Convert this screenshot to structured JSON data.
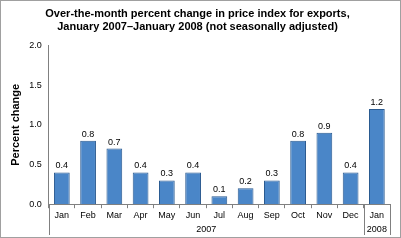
{
  "chart_data": {
    "type": "bar",
    "title": [
      "Over-the-month percent change in price index for exports,",
      "January 2007–January 2008 (not seasonally adjusted)"
    ],
    "y_label": "Percent change",
    "categories": [
      "Jan",
      "Feb",
      "Mar",
      "Apr",
      "May",
      "Jun",
      "Jul",
      "Aug",
      "Sep",
      "Oct",
      "Nov",
      "Dec",
      "Jan"
    ],
    "years": [
      "2007",
      "2007",
      "2007",
      "2007",
      "2007",
      "2007",
      "2007",
      "2007",
      "2007",
      "2007",
      "2007",
      "2007",
      "2008"
    ],
    "values": [
      0.4,
      0.8,
      0.7,
      0.4,
      0.3,
      0.4,
      0.1,
      0.2,
      0.3,
      0.8,
      0.9,
      0.4,
      1.2
    ],
    "color": "#4a86c8",
    "ylim": [
      0,
      2.0
    ],
    "yticks": [
      {
        "value": 0,
        "label": "0.0"
      },
      {
        "value": 0.5,
        "label": "0.5"
      },
      {
        "value": 1.0,
        "label": "1.0"
      },
      {
        "value": 1.5,
        "label": "1.5"
      },
      {
        "value": 2.0,
        "label": "2.0"
      }
    ],
    "grid": false,
    "data_labels": true
  }
}
